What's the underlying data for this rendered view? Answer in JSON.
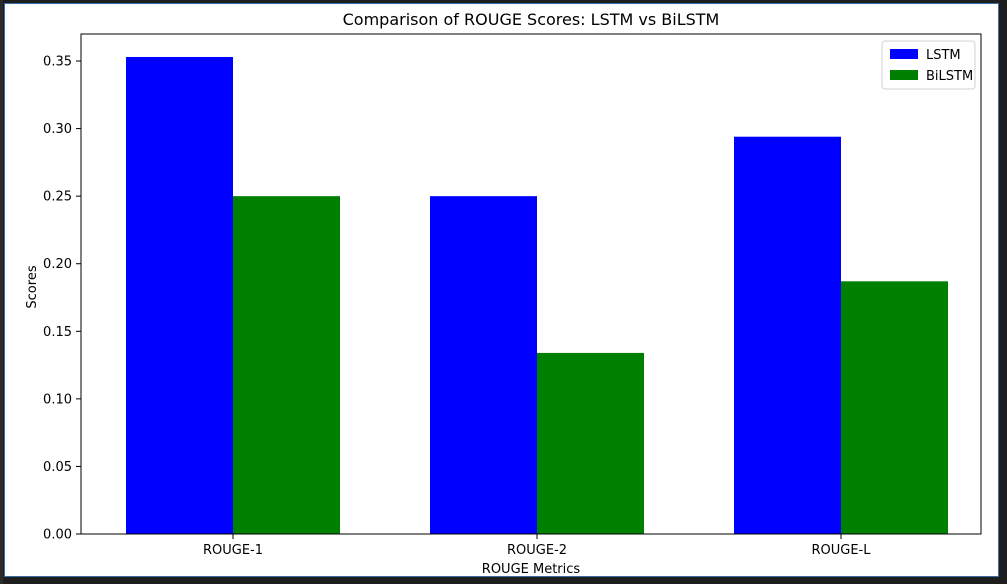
{
  "colors": {
    "frame_bg": "#ffffff",
    "lstm": "#0000ff",
    "bilstm": "#008000",
    "axis": "#000000"
  },
  "chart_data": {
    "type": "bar",
    "title": "Comparison of ROUGE Scores: LSTM vs BiLSTM",
    "xlabel": "ROUGE Metrics",
    "ylabel": "Scores",
    "categories": [
      "ROUGE-1",
      "ROUGE-2",
      "ROUGE-L"
    ],
    "series": [
      {
        "name": "LSTM",
        "color": "#0000ff",
        "values": [
          0.353,
          0.25,
          0.294
        ]
      },
      {
        "name": "BiLSTM",
        "color": "#008000",
        "values": [
          0.25,
          0.134,
          0.187
        ]
      }
    ],
    "ylim": [
      0,
      0.37
    ],
    "yticks": [
      "0.00",
      "0.05",
      "0.10",
      "0.15",
      "0.20",
      "0.25",
      "0.30",
      "0.35"
    ],
    "legend_position": "top-right",
    "grid": false
  }
}
